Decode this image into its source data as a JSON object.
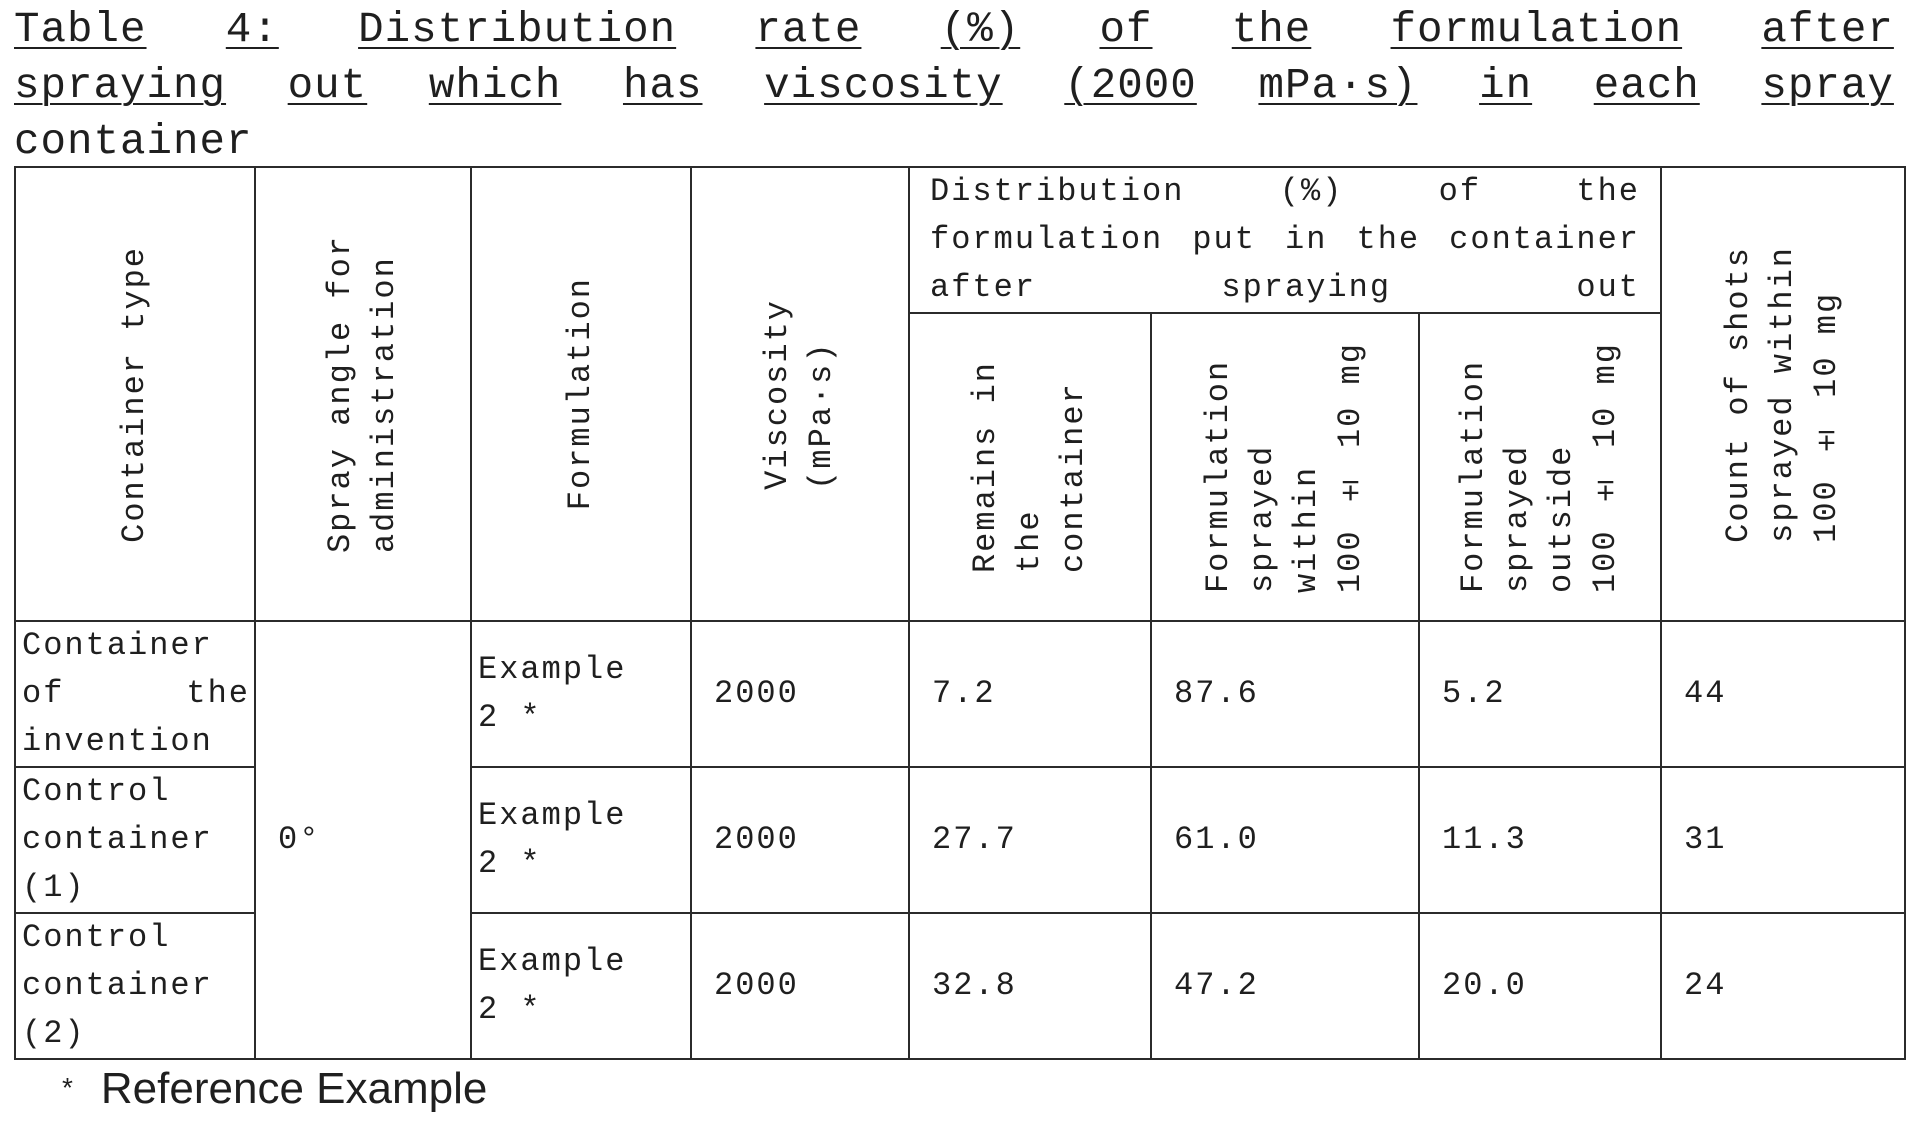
{
  "caption": {
    "line1": [
      "Table",
      "4:",
      "Distribution",
      "rate",
      "(%)",
      "of",
      "the",
      "formulation",
      "after"
    ],
    "line2": [
      "spraying",
      "out",
      "which",
      "has",
      "viscosity",
      "(2000",
      "mPa·s)",
      "in",
      "each",
      "spray"
    ],
    "line3": "container"
  },
  "headers": {
    "container_type": "Container type",
    "spray_angle": "Spray angle for\nadministration",
    "formulation": "Formulation",
    "viscosity": "Viscosity\n(mPa·s)",
    "distribution_group": "Distribution (%) of the formulation put in the container after spraying out",
    "remains": "Remains in\nthe\ncontainer",
    "sprayed_within": "Formulation\nsprayed\nwithin\n100 ± 10 mg",
    "sprayed_outside": "Formulation\nsprayed\noutside\n100 ± 10 mg",
    "count_shots": "Count of shots\nsprayed within\n100 ± 10 mg"
  },
  "spray_angle_value": "0°",
  "rows": [
    {
      "container": [
        "Container",
        "of the",
        "invention"
      ],
      "formulation": [
        "Example",
        "2 *"
      ],
      "viscosity": "2000",
      "remains": "7.2",
      "within": "87.6",
      "outside": "5.2",
      "count": "44"
    },
    {
      "container": [
        "Control",
        "container",
        "(1)"
      ],
      "formulation": [
        "Example",
        "2 *"
      ],
      "viscosity": "2000",
      "remains": "27.7",
      "within": "61.0",
      "outside": "11.3",
      "count": "31"
    },
    {
      "container": [
        "Control",
        "container",
        "(2)"
      ],
      "formulation": [
        "Example",
        "2 *"
      ],
      "viscosity": "2000",
      "remains": "32.8",
      "within": "47.2",
      "outside": "20.0",
      "count": "24"
    }
  ],
  "footnote": {
    "symbol": "*",
    "text": "Reference Example"
  }
}
